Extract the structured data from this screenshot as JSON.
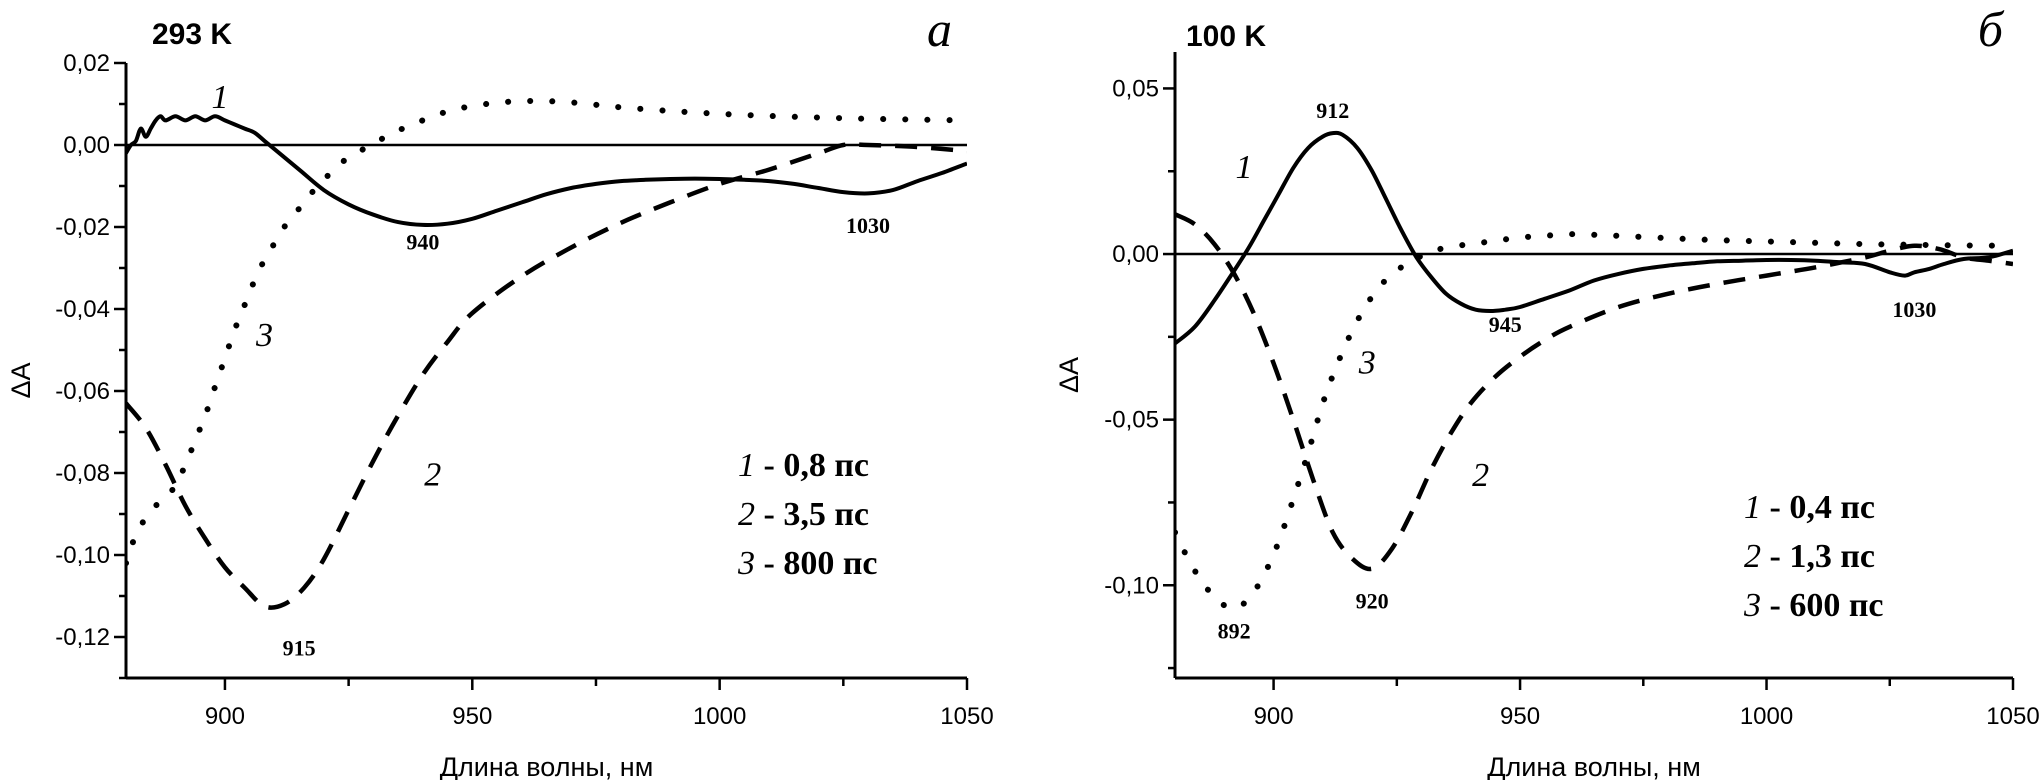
{
  "chart_data": [
    {
      "type": "line",
      "panel_letter": "а",
      "title": "293 K",
      "xlabel": "Длина волны, нм",
      "ylabel": "ΔA",
      "xlim": [
        880,
        1050
      ],
      "ylim": [
        -0.13,
        0.02
      ],
      "x_ticks": [
        900,
        950,
        1000,
        1050
      ],
      "x_tick_labels": [
        "900",
        "950",
        "1000",
        "1050"
      ],
      "y_ticks": [
        0.02,
        0.0,
        -0.02,
        -0.04,
        -0.06,
        -0.08,
        -0.1,
        -0.12
      ],
      "y_tick_labels": [
        "0,02",
        "0,00",
        "-0,02",
        "-0,04",
        "-0,06",
        "-0,08",
        "-0,10",
        "-0,12"
      ],
      "zero_line": true,
      "grid": false,
      "legend_position": "bottom-right",
      "legend": [
        {
          "num": "1",
          "text": " - 0,8 пс"
        },
        {
          "num": "2",
          "text": " - 3,5 пс"
        },
        {
          "num": "3",
          "text": " - 800 пс"
        }
      ],
      "series": [
        {
          "name": "1",
          "style": "solid",
          "label_at": {
            "x": 899,
            "y": 0.009
          },
          "x": [
            880,
            881,
            882,
            883,
            884,
            885,
            886,
            887,
            888,
            890,
            892,
            894,
            896,
            898,
            900,
            902,
            904,
            906,
            908,
            910,
            915,
            920,
            925,
            930,
            935,
            940,
            945,
            950,
            955,
            960,
            965,
            970,
            975,
            980,
            985,
            990,
            995,
            1000,
            1005,
            1010,
            1015,
            1020,
            1025,
            1030,
            1035,
            1040,
            1045,
            1050
          ],
          "values": [
            -0.002,
            0.0,
            0.001,
            0.004,
            0.002,
            0.004,
            0.006,
            0.007,
            0.006,
            0.007,
            0.006,
            0.007,
            0.006,
            0.007,
            0.006,
            0.005,
            0.004,
            0.003,
            0.001,
            -0.001,
            -0.006,
            -0.011,
            -0.0145,
            -0.017,
            -0.0188,
            -0.0195,
            -0.0192,
            -0.018,
            -0.016,
            -0.014,
            -0.012,
            -0.0105,
            -0.0095,
            -0.0088,
            -0.0085,
            -0.0083,
            -0.0082,
            -0.0083,
            -0.0085,
            -0.0088,
            -0.0095,
            -0.0105,
            -0.0115,
            -0.0118,
            -0.011,
            -0.0088,
            -0.0068,
            -0.0045
          ]
        },
        {
          "name": "2",
          "style": "dashed",
          "label_at": {
            "x": 942,
            "y": -0.083
          },
          "x": [
            880,
            884,
            888,
            892,
            896,
            900,
            904,
            908,
            912,
            916,
            920,
            925,
            930,
            935,
            940,
            945,
            950,
            960,
            970,
            980,
            990,
            1000,
            1010,
            1020,
            1025,
            1030,
            1040,
            1050
          ],
          "values": [
            -0.063,
            -0.069,
            -0.078,
            -0.088,
            -0.096,
            -0.103,
            -0.108,
            -0.1125,
            -0.112,
            -0.108,
            -0.101,
            -0.089,
            -0.077,
            -0.066,
            -0.056,
            -0.048,
            -0.041,
            -0.032,
            -0.025,
            -0.019,
            -0.014,
            -0.0095,
            -0.006,
            -0.002,
            0.0,
            0.0,
            -0.0005,
            -0.0015
          ]
        },
        {
          "name": "3",
          "style": "dotted",
          "label_at": {
            "x": 908,
            "y": -0.049
          },
          "x": [
            880,
            882,
            884,
            886,
            888,
            890,
            892,
            894,
            896,
            898,
            900,
            902,
            904,
            906,
            908,
            910,
            912,
            914,
            916,
            918,
            920,
            922,
            925,
            928,
            931,
            934,
            938,
            942,
            946,
            950,
            955,
            960,
            965,
            970,
            975,
            980,
            990,
            1000,
            1010,
            1020,
            1030,
            1040,
            1050
          ],
          "values": [
            -0.102,
            -0.095,
            -0.091,
            -0.088,
            -0.086,
            -0.083,
            -0.078,
            -0.072,
            -0.066,
            -0.059,
            -0.052,
            -0.045,
            -0.039,
            -0.033,
            -0.028,
            -0.024,
            -0.02,
            -0.017,
            -0.014,
            -0.011,
            -0.0085,
            -0.006,
            -0.003,
            -0.001,
            0.001,
            0.003,
            0.005,
            0.007,
            0.0085,
            0.0095,
            0.0103,
            0.0107,
            0.0107,
            0.0104,
            0.0098,
            0.0092,
            0.0083,
            0.0076,
            0.0071,
            0.0067,
            0.0064,
            0.0062,
            0.006
          ]
        }
      ],
      "annotations": [
        {
          "text": "940",
          "x": 940,
          "y": -0.0255
        },
        {
          "text": "1030",
          "x": 1030,
          "y": -0.0215
        },
        {
          "text": "915",
          "x": 915,
          "y": -0.1245
        }
      ]
    },
    {
      "type": "line",
      "panel_letter": "б",
      "title": "100 K",
      "xlabel": "Длина волны, нм",
      "ylabel": "ΔA",
      "xlim": [
        880,
        1050
      ],
      "ylim": [
        -0.128,
        0.061
      ],
      "x_ticks": [
        900,
        950,
        1000,
        1050
      ],
      "x_tick_labels": [
        "900",
        "950",
        "1000",
        "1050"
      ],
      "y_ticks": [
        0.05,
        0.0,
        -0.05,
        -0.1
      ],
      "y_tick_labels": [
        "0,05",
        "0,00",
        "-0,05",
        "-0,10"
      ],
      "y_minor_ticks": [
        0.025,
        -0.025,
        -0.075,
        -0.125
      ],
      "zero_line": true,
      "grid": false,
      "legend_position": "bottom-right",
      "legend": [
        {
          "num": "1",
          "text": " - 0,4 пс"
        },
        {
          "num": "2",
          "text": " - 1,3 пс"
        },
        {
          "num": "3",
          "text": " - 600 пс"
        }
      ],
      "series": [
        {
          "name": "1",
          "style": "solid",
          "label_at": {
            "x": 894,
            "y": 0.023
          },
          "x": [
            880,
            884,
            888,
            892,
            895,
            898,
            901,
            904,
            907,
            910,
            912,
            914,
            917,
            920,
            923,
            926,
            929,
            932,
            935,
            938,
            941,
            944,
            947,
            950,
            955,
            960,
            965,
            970,
            975,
            980,
            985,
            990,
            995,
            1000,
            1005,
            1010,
            1015,
            1020,
            1025,
            1028,
            1030,
            1033,
            1036,
            1040,
            1045,
            1050
          ],
          "values": [
            -0.027,
            -0.022,
            -0.014,
            -0.005,
            0.002,
            0.01,
            0.018,
            0.026,
            0.032,
            0.0355,
            0.0365,
            0.036,
            0.032,
            0.025,
            0.016,
            0.007,
            -0.001,
            -0.007,
            -0.012,
            -0.015,
            -0.0168,
            -0.0172,
            -0.0168,
            -0.016,
            -0.0135,
            -0.011,
            -0.008,
            -0.006,
            -0.0045,
            -0.0035,
            -0.0028,
            -0.0022,
            -0.002,
            -0.0018,
            -0.0018,
            -0.002,
            -0.0025,
            -0.003,
            -0.0055,
            -0.0065,
            -0.0055,
            -0.0045,
            -0.003,
            -0.0015,
            -0.001,
            0.001
          ]
        },
        {
          "name": "2",
          "style": "dashed",
          "label_at": {
            "x": 942,
            "y": -0.07
          },
          "x": [
            880,
            884,
            888,
            892,
            896,
            900,
            904,
            908,
            912,
            916,
            920,
            924,
            928,
            932,
            936,
            940,
            945,
            950,
            955,
            960,
            970,
            980,
            990,
            1000,
            1010,
            1020,
            1025,
            1030,
            1035,
            1040,
            1045,
            1050
          ],
          "values": [
            0.012,
            0.009,
            0.003,
            -0.006,
            -0.018,
            -0.033,
            -0.05,
            -0.068,
            -0.084,
            -0.092,
            -0.095,
            -0.089,
            -0.078,
            -0.065,
            -0.054,
            -0.045,
            -0.037,
            -0.031,
            -0.026,
            -0.022,
            -0.016,
            -0.012,
            -0.009,
            -0.0065,
            -0.004,
            -0.001,
            0.001,
            0.0025,
            0.0015,
            -0.001,
            -0.002,
            -0.003
          ]
        },
        {
          "name": "3",
          "style": "dotted",
          "label_at": {
            "x": 919,
            "y": -0.036
          },
          "x": [
            880,
            883,
            886,
            889,
            892,
            895,
            898,
            901,
            904,
            907,
            910,
            913,
            916,
            919,
            922,
            925,
            928,
            931,
            935,
            940,
            945,
            950,
            955,
            960,
            965,
            970,
            980,
            990,
            1000,
            1010,
            1020,
            1030,
            1040,
            1050
          ],
          "values": [
            -0.084,
            -0.093,
            -0.1,
            -0.105,
            -0.107,
            -0.104,
            -0.097,
            -0.087,
            -0.074,
            -0.06,
            -0.045,
            -0.033,
            -0.023,
            -0.015,
            -0.009,
            -0.005,
            -0.002,
            0.0,
            0.002,
            0.003,
            0.004,
            0.005,
            0.0055,
            0.006,
            0.0058,
            0.0055,
            0.0048,
            0.0042,
            0.0038,
            0.0034,
            0.003,
            0.0028,
            0.0026,
            0.0025
          ]
        }
      ],
      "annotations": [
        {
          "text": "912",
          "x": 912,
          "y": 0.041
        },
        {
          "text": "945",
          "x": 947,
          "y": -0.0235
        },
        {
          "text": "1030",
          "x": 1030,
          "y": -0.019
        },
        {
          "text": "920",
          "x": 920,
          "y": -0.107
        },
        {
          "text": "892",
          "x": 892,
          "y": -0.116
        }
      ]
    }
  ]
}
